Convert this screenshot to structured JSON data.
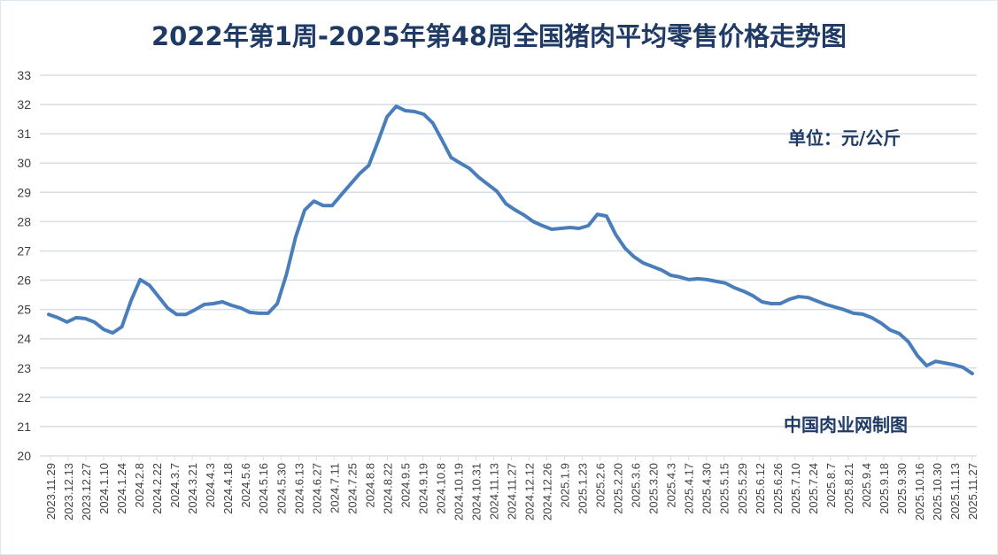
{
  "chart_data": {
    "type": "line",
    "title": "2022年第1周-2025年第48周全国猪肉平均零售价格走势图",
    "unit_note": "单位：元/公斤",
    "source_note": "中国肉业网制图",
    "xlabel": "",
    "ylabel": "",
    "ylim": [
      20,
      33
    ],
    "yticks": [
      20,
      21,
      22,
      23,
      24,
      25,
      26,
      27,
      28,
      29,
      30,
      31,
      32,
      33
    ],
    "grid": true,
    "line_color": "#4a7ebb",
    "x_tick_labels": [
      "2023.11.29",
      "2023.12.13",
      "2023.12.27",
      "2024.1.10",
      "2024.1.24",
      "2024.2.8",
      "2024.2.22",
      "2024.3.7",
      "2024.3.21",
      "2024.4.3",
      "2024.4.18",
      "2024.5.6",
      "2024.5.16",
      "2024.5.30",
      "2024.6.13",
      "2024.6.27",
      "2024.7.11",
      "2024.7.25",
      "2024.8.8",
      "2024.8.22",
      "2024.9.5",
      "2024.9.19",
      "2024.10.8",
      "2024.10.19",
      "2024.10.31",
      "2024.11.13",
      "2024.11.27",
      "2024.12.12",
      "2024.12.26",
      "2025.1.9",
      "2025.1.23",
      "2025.2.6",
      "2025.2.20",
      "2025.3.6",
      "2025.3.20",
      "2025.4.3",
      "2025.4.17",
      "2025.4.30",
      "2025.5.15",
      "2025.5.29",
      "2025.6.12",
      "2025.6.26",
      "2025.7.10",
      "2025.7.24",
      "2025.8.7",
      "2025.8.21",
      "2025.9.4",
      "2025.9.18",
      "2025.9.30",
      "2025.10.16",
      "2025.10.30",
      "2025.11.13",
      "2025.11.27"
    ],
    "series": [
      {
        "name": "全国猪肉平均零售价格",
        "values": [
          24.83,
          24.72,
          24.57,
          24.72,
          24.69,
          24.57,
          24.32,
          24.2,
          24.41,
          25.3,
          26.02,
          25.83,
          25.44,
          25.05,
          24.83,
          24.83,
          24.99,
          25.17,
          25.2,
          25.26,
          25.14,
          25.05,
          24.9,
          24.87,
          24.87,
          25.2,
          26.2,
          27.47,
          28.4,
          28.7,
          28.55,
          28.55,
          28.92,
          29.28,
          29.64,
          29.92,
          30.73,
          31.58,
          31.94,
          31.79,
          31.76,
          31.67,
          31.37,
          30.79,
          30.19,
          30.0,
          29.82,
          29.52,
          29.28,
          29.04,
          28.61,
          28.4,
          28.22,
          28.0,
          27.86,
          27.74,
          27.77,
          27.8,
          27.77,
          27.86,
          28.25,
          28.19,
          27.56,
          27.1,
          26.8,
          26.59,
          26.47,
          26.35,
          26.17,
          26.11,
          26.02,
          26.05,
          26.02,
          25.96,
          25.9,
          25.74,
          25.62,
          25.47,
          25.26,
          25.2,
          25.2,
          25.35,
          25.44,
          25.41,
          25.29,
          25.17,
          25.08,
          24.99,
          24.87,
          24.84,
          24.72,
          24.54,
          24.3,
          24.18,
          23.9,
          23.42,
          23.08,
          23.23,
          23.17,
          23.11,
          23.02,
          22.81
        ]
      }
    ]
  }
}
